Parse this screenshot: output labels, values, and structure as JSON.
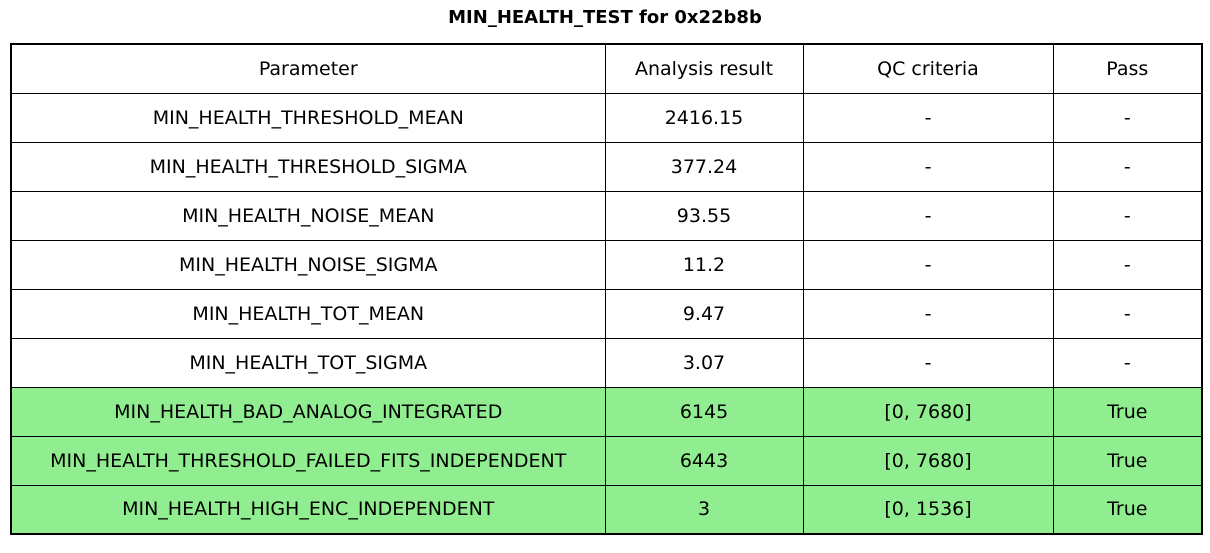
{
  "page": {
    "title": "MIN_HEALTH_TEST for 0x22b8b"
  },
  "colors": {
    "background": "#ffffff",
    "border": "#000000",
    "text": "#000000",
    "highlight_green": "#90ee90"
  },
  "table": {
    "columns": [
      "Parameter",
      "Analysis result",
      "QC criteria",
      "Pass"
    ],
    "rows": [
      [
        "MIN_HEALTH_THRESHOLD_MEAN",
        "2416.15",
        "-",
        "-"
      ],
      [
        "MIN_HEALTH_THRESHOLD_SIGMA",
        "377.24",
        "-",
        "-"
      ],
      [
        "MIN_HEALTH_NOISE_MEAN",
        "93.55",
        "-",
        "-"
      ],
      [
        "MIN_HEALTH_NOISE_SIGMA",
        "11.2",
        "-",
        "-"
      ],
      [
        "MIN_HEALTH_TOT_MEAN",
        "9.47",
        "-",
        "-"
      ],
      [
        "MIN_HEALTH_TOT_SIGMA",
        "3.07",
        "-",
        "-"
      ],
      [
        "MIN_HEALTH_BAD_ANALOG_INTEGRATED",
        "6145",
        "[0, 7680]",
        "True"
      ],
      [
        "MIN_HEALTH_THRESHOLD_FAILED_FITS_INDEPENDENT",
        "6443",
        "[0, 7680]",
        "True"
      ],
      [
        "MIN_HEALTH_HIGH_ENC_INDEPENDENT",
        "3",
        "[0, 1536]",
        "True"
      ]
    ],
    "highlighted_rows": [
      6,
      7,
      8
    ]
  },
  "chart_data": {
    "type": "table",
    "title": "MIN_HEALTH_TEST for 0x22b8b",
    "columns": [
      "Parameter",
      "Analysis result",
      "QC criteria",
      "Pass"
    ],
    "rows": [
      {
        "parameter": "MIN_HEALTH_THRESHOLD_MEAN",
        "analysis_result": 2416.15,
        "qc_criteria": "-",
        "pass": "-"
      },
      {
        "parameter": "MIN_HEALTH_THRESHOLD_SIGMA",
        "analysis_result": 377.24,
        "qc_criteria": "-",
        "pass": "-"
      },
      {
        "parameter": "MIN_HEALTH_NOISE_MEAN",
        "analysis_result": 93.55,
        "qc_criteria": "-",
        "pass": "-"
      },
      {
        "parameter": "MIN_HEALTH_NOISE_SIGMA",
        "analysis_result": 11.2,
        "qc_criteria": "-",
        "pass": "-"
      },
      {
        "parameter": "MIN_HEALTH_TOT_MEAN",
        "analysis_result": 9.47,
        "qc_criteria": "-",
        "pass": "-"
      },
      {
        "parameter": "MIN_HEALTH_TOT_SIGMA",
        "analysis_result": 3.07,
        "qc_criteria": "-",
        "pass": "-"
      },
      {
        "parameter": "MIN_HEALTH_BAD_ANALOG_INTEGRATED",
        "analysis_result": 6145,
        "qc_criteria": "[0, 7680]",
        "pass": "True"
      },
      {
        "parameter": "MIN_HEALTH_THRESHOLD_FAILED_FITS_INDEPENDENT",
        "analysis_result": 6443,
        "qc_criteria": "[0, 7680]",
        "pass": "True"
      },
      {
        "parameter": "MIN_HEALTH_HIGH_ENC_INDEPENDENT",
        "analysis_result": 3,
        "qc_criteria": "[0, 1536]",
        "pass": "True"
      }
    ],
    "highlighted_rows": [
      6,
      7,
      8
    ],
    "highlight_color": "#90ee90",
    "layout": {
      "grid": true,
      "legend": false
    }
  }
}
